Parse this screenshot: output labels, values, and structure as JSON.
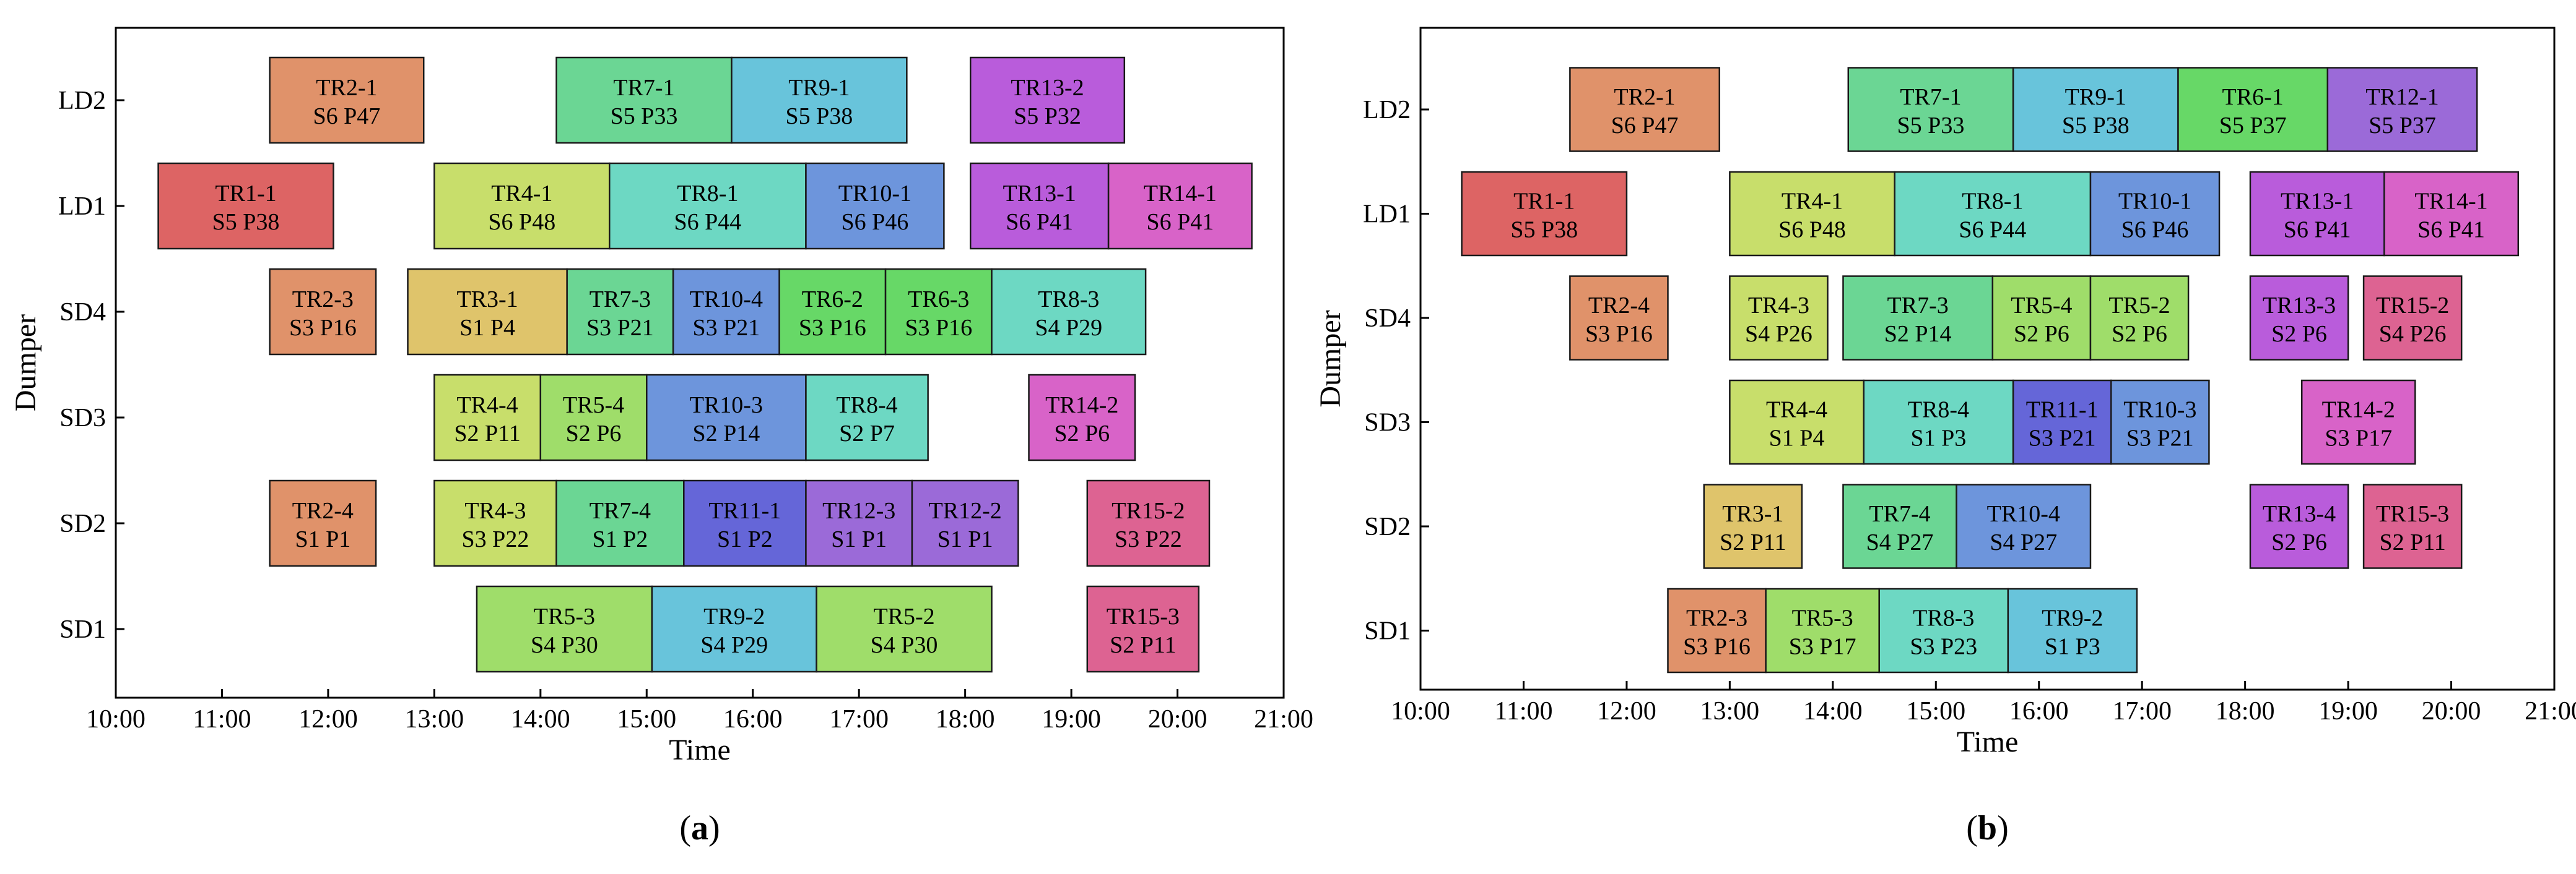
{
  "chart_data": [
    {
      "type": "gantt",
      "panel_label": "a",
      "xlabel": "Time",
      "ylabel": "Dumper",
      "xlim": [
        10,
        21
      ],
      "x_ticks": [
        "10:00",
        "11:00",
        "12:00",
        "13:00",
        "14:00",
        "15:00",
        "16:00",
        "17:00",
        "18:00",
        "19:00",
        "20:00",
        "21:00"
      ],
      "categories": [
        "LD2",
        "LD1",
        "SD4",
        "SD3",
        "SD2",
        "SD1"
      ],
      "tasks": [
        {
          "dumper": "LD2",
          "start": 11.45,
          "end": 12.9,
          "label": "TR2-1",
          "sub": "S6 P47",
          "color": "#e0926a"
        },
        {
          "dumper": "LD2",
          "start": 14.15,
          "end": 15.8,
          "label": "TR7-1",
          "sub": "S5 P33",
          "color": "#6bd694"
        },
        {
          "dumper": "LD2",
          "start": 15.8,
          "end": 17.45,
          "label": "TR9-1",
          "sub": "S5 P38",
          "color": "#68c4db"
        },
        {
          "dumper": "LD2",
          "start": 18.05,
          "end": 19.5,
          "label": "TR13-2",
          "sub": "S5 P32",
          "color": "#b95cdb"
        },
        {
          "dumper": "LD1",
          "start": 10.4,
          "end": 12.05,
          "label": "TR1-1",
          "sub": "S5 P38",
          "color": "#dd6464"
        },
        {
          "dumper": "LD1",
          "start": 13.0,
          "end": 14.65,
          "label": "TR4-1",
          "sub": "S6 P48",
          "color": "#c8de6b"
        },
        {
          "dumper": "LD1",
          "start": 14.65,
          "end": 16.5,
          "label": "TR8-1",
          "sub": "S6 P44",
          "color": "#6dd8c3"
        },
        {
          "dumper": "LD1",
          "start": 16.5,
          "end": 17.8,
          "label": "TR10-1",
          "sub": "S6 P46",
          "color": "#6d95dc"
        },
        {
          "dumper": "LD1",
          "start": 18.05,
          "end": 19.35,
          "label": "TR13-1",
          "sub": "S6 P41",
          "color": "#b95cdb"
        },
        {
          "dumper": "LD1",
          "start": 19.35,
          "end": 20.7,
          "label": "TR14-1",
          "sub": "S6 P41",
          "color": "#d863c8"
        },
        {
          "dumper": "SD4",
          "start": 11.45,
          "end": 12.45,
          "label": "TR2-3",
          "sub": "S3 P16",
          "color": "#e0926a"
        },
        {
          "dumper": "SD4",
          "start": 12.75,
          "end": 14.25,
          "label": "TR3-1",
          "sub": "S1 P4",
          "color": "#dfc46b"
        },
        {
          "dumper": "SD4",
          "start": 14.25,
          "end": 15.25,
          "label": "TR7-3",
          "sub": "S3 P21",
          "color": "#6bd694"
        },
        {
          "dumper": "SD4",
          "start": 15.25,
          "end": 16.25,
          "label": "TR10-4",
          "sub": "S3 P21",
          "color": "#6d95dc"
        },
        {
          "dumper": "SD4",
          "start": 16.25,
          "end": 17.25,
          "label": "TR6-2",
          "sub": "S3 P16",
          "color": "#67d867"
        },
        {
          "dumper": "SD4",
          "start": 17.25,
          "end": 18.25,
          "label": "TR6-3",
          "sub": "S3 P16",
          "color": "#67d867"
        },
        {
          "dumper": "SD4",
          "start": 18.25,
          "end": 19.7,
          "label": "TR8-3",
          "sub": "S4 P29",
          "color": "#6dd8c3"
        },
        {
          "dumper": "SD3",
          "start": 13.0,
          "end": 14.0,
          "label": "TR4-4",
          "sub": "S2 P11",
          "color": "#c8de6b"
        },
        {
          "dumper": "SD3",
          "start": 14.0,
          "end": 15.0,
          "label": "TR5-4",
          "sub": "S2 P6",
          "color": "#9fdd6a"
        },
        {
          "dumper": "SD3",
          "start": 15.0,
          "end": 16.5,
          "label": "TR10-3",
          "sub": "S2 P14",
          "color": "#6d95dc"
        },
        {
          "dumper": "SD3",
          "start": 16.5,
          "end": 17.65,
          "label": "TR8-4",
          "sub": "S2 P7",
          "color": "#6dd8c3"
        },
        {
          "dumper": "SD3",
          "start": 18.6,
          "end": 19.6,
          "label": "TR14-2",
          "sub": "S2 P6",
          "color": "#d863c8"
        },
        {
          "dumper": "SD2",
          "start": 11.45,
          "end": 12.45,
          "label": "TR2-4",
          "sub": "S1 P1",
          "color": "#e0926a"
        },
        {
          "dumper": "SD2",
          "start": 13.0,
          "end": 14.15,
          "label": "TR4-3",
          "sub": "S3 P22",
          "color": "#c8de6b"
        },
        {
          "dumper": "SD2",
          "start": 14.15,
          "end": 15.35,
          "label": "TR7-4",
          "sub": "S1 P2",
          "color": "#6bd694"
        },
        {
          "dumper": "SD2",
          "start": 15.35,
          "end": 16.5,
          "label": "TR11-1",
          "sub": "S1 P2",
          "color": "#6566d8"
        },
        {
          "dumper": "SD2",
          "start": 16.5,
          "end": 17.5,
          "label": "TR12-3",
          "sub": "S1 P1",
          "color": "#9b6ad8"
        },
        {
          "dumper": "SD2",
          "start": 17.5,
          "end": 18.5,
          "label": "TR12-2",
          "sub": "S1 P1",
          "color": "#9b6ad8"
        },
        {
          "dumper": "SD2",
          "start": 19.15,
          "end": 20.3,
          "label": "TR15-2",
          "sub": "S3 P22",
          "color": "#dd6392"
        },
        {
          "dumper": "SD1",
          "start": 13.4,
          "end": 15.05,
          "label": "TR5-3",
          "sub": "S4 P30",
          "color": "#9fdd6a"
        },
        {
          "dumper": "SD1",
          "start": 15.05,
          "end": 16.6,
          "label": "TR9-2",
          "sub": "S4 P29",
          "color": "#68c4db"
        },
        {
          "dumper": "SD1",
          "start": 16.6,
          "end": 18.25,
          "label": "TR5-2",
          "sub": "S4 P30",
          "color": "#9fdd6a"
        },
        {
          "dumper": "SD1",
          "start": 19.15,
          "end": 20.2,
          "label": "TR15-3",
          "sub": "S2 P11",
          "color": "#dd6392"
        }
      ]
    },
    {
      "type": "gantt",
      "panel_label": "b",
      "xlabel": "Time",
      "ylabel": "Dumper",
      "xlim": [
        10,
        21
      ],
      "x_ticks": [
        "10:00",
        "11:00",
        "12:00",
        "13:00",
        "14:00",
        "15:00",
        "16:00",
        "17:00",
        "18:00",
        "19:00",
        "20:00",
        "21:00"
      ],
      "categories": [
        "LD2",
        "LD1",
        "SD4",
        "SD3",
        "SD2",
        "SD1"
      ],
      "tasks": [
        {
          "dumper": "LD2",
          "start": 11.45,
          "end": 12.9,
          "label": "TR2-1",
          "sub": "S6 P47",
          "color": "#e0926a"
        },
        {
          "dumper": "LD2",
          "start": 14.15,
          "end": 15.75,
          "label": "TR7-1",
          "sub": "S5 P33",
          "color": "#6bd694"
        },
        {
          "dumper": "LD2",
          "start": 15.75,
          "end": 17.35,
          "label": "TR9-1",
          "sub": "S5 P38",
          "color": "#68c4db"
        },
        {
          "dumper": "LD2",
          "start": 17.35,
          "end": 18.8,
          "label": "TR6-1",
          "sub": "S5 P37",
          "color": "#67d867"
        },
        {
          "dumper": "LD2",
          "start": 18.8,
          "end": 20.25,
          "label": "TR12-1",
          "sub": "S5 P37",
          "color": "#9b6ad8"
        },
        {
          "dumper": "LD1",
          "start": 10.4,
          "end": 12.0,
          "label": "TR1-1",
          "sub": "S5 P38",
          "color": "#dd6464"
        },
        {
          "dumper": "LD1",
          "start": 13.0,
          "end": 14.6,
          "label": "TR4-1",
          "sub": "S6 P48",
          "color": "#c8de6b"
        },
        {
          "dumper": "LD1",
          "start": 14.6,
          "end": 16.5,
          "label": "TR8-1",
          "sub": "S6 P44",
          "color": "#6dd8c3"
        },
        {
          "dumper": "LD1",
          "start": 16.5,
          "end": 17.75,
          "label": "TR10-1",
          "sub": "S6 P46",
          "color": "#6d95dc"
        },
        {
          "dumper": "LD1",
          "start": 18.05,
          "end": 19.35,
          "label": "TR13-1",
          "sub": "S6 P41",
          "color": "#b95cdb"
        },
        {
          "dumper": "LD1",
          "start": 19.35,
          "end": 20.65,
          "label": "TR14-1",
          "sub": "S6 P41",
          "color": "#d863c8"
        },
        {
          "dumper": "SD4",
          "start": 11.45,
          "end": 12.4,
          "label": "TR2-4",
          "sub": "S3 P16",
          "color": "#e0926a"
        },
        {
          "dumper": "SD4",
          "start": 13.0,
          "end": 13.95,
          "label": "TR4-3",
          "sub": "S4 P26",
          "color": "#c8de6b"
        },
        {
          "dumper": "SD4",
          "start": 14.1,
          "end": 15.55,
          "label": "TR7-3",
          "sub": "S2 P14",
          "color": "#6bd694"
        },
        {
          "dumper": "SD4",
          "start": 15.55,
          "end": 16.5,
          "label": "TR5-4",
          "sub": "S2 P6",
          "color": "#9fdd6a"
        },
        {
          "dumper": "SD4",
          "start": 16.5,
          "end": 17.45,
          "label": "TR5-2",
          "sub": "S2 P6",
          "color": "#9fdd6a"
        },
        {
          "dumper": "SD4",
          "start": 18.05,
          "end": 19.0,
          "label": "TR13-3",
          "sub": "S2 P6",
          "color": "#b95cdb"
        },
        {
          "dumper": "SD4",
          "start": 19.15,
          "end": 20.1,
          "label": "TR15-2",
          "sub": "S4 P26",
          "color": "#dd6392"
        },
        {
          "dumper": "SD3",
          "start": 13.0,
          "end": 14.3,
          "label": "TR4-4",
          "sub": "S1 P4",
          "color": "#c8de6b"
        },
        {
          "dumper": "SD3",
          "start": 14.3,
          "end": 15.75,
          "label": "TR8-4",
          "sub": "S1 P3",
          "color": "#6dd8c3"
        },
        {
          "dumper": "SD3",
          "start": 15.75,
          "end": 16.7,
          "label": "TR11-1",
          "sub": "S3 P21",
          "color": "#6566d8"
        },
        {
          "dumper": "SD3",
          "start": 16.7,
          "end": 17.65,
          "label": "TR10-3",
          "sub": "S3 P21",
          "color": "#6d95dc"
        },
        {
          "dumper": "SD3",
          "start": 18.55,
          "end": 19.65,
          "label": "TR14-2",
          "sub": "S3 P17",
          "color": "#d863c8"
        },
        {
          "dumper": "SD2",
          "start": 12.75,
          "end": 13.7,
          "label": "TR3-1",
          "sub": "S2 P11",
          "color": "#dfc46b"
        },
        {
          "dumper": "SD2",
          "start": 14.1,
          "end": 15.2,
          "label": "TR7-4",
          "sub": "S4 P27",
          "color": "#6bd694"
        },
        {
          "dumper": "SD2",
          "start": 15.2,
          "end": 16.5,
          "label": "TR10-4",
          "sub": "S4 P27",
          "color": "#6d95dc"
        },
        {
          "dumper": "SD2",
          "start": 18.05,
          "end": 19.0,
          "label": "TR13-4",
          "sub": "S2 P6",
          "color": "#b95cdb"
        },
        {
          "dumper": "SD2",
          "start": 19.15,
          "end": 20.1,
          "label": "TR15-3",
          "sub": "S2 P11",
          "color": "#dd6392"
        },
        {
          "dumper": "SD1",
          "start": 12.4,
          "end": 13.35,
          "label": "TR2-3",
          "sub": "S3 P16",
          "color": "#e0926a"
        },
        {
          "dumper": "SD1",
          "start": 13.35,
          "end": 14.45,
          "label": "TR5-3",
          "sub": "S3 P17",
          "color": "#9fdd6a"
        },
        {
          "dumper": "SD1",
          "start": 14.45,
          "end": 15.7,
          "label": "TR8-3",
          "sub": "S3 P23",
          "color": "#6dd8c3"
        },
        {
          "dumper": "SD1",
          "start": 15.7,
          "end": 16.95,
          "label": "TR9-2",
          "sub": "S1 P3",
          "color": "#68c4db"
        }
      ]
    }
  ]
}
